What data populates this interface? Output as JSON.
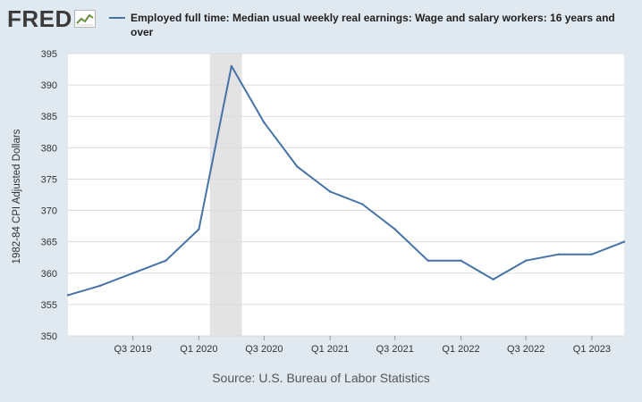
{
  "logo": {
    "text": "FRED"
  },
  "source": "Source: U.S. Bureau of Labor Statistics",
  "colors": {
    "line": "#4572a7",
    "background": "#e1e9f0",
    "plot_bg": "#ffffff",
    "recession": "#e3e3e3",
    "grid": "#dcdcdc"
  },
  "chart_data": {
    "type": "line",
    "series": [
      {
        "name": "Employed full time: Median usual weekly real earnings: Wage and salary workers: 16 years and over",
        "x": [
          "2019-01-01",
          "2019-04-01",
          "2019-07-01",
          "2019-10-01",
          "2020-01-01",
          "2020-04-01",
          "2020-07-01",
          "2020-10-01",
          "2021-01-01",
          "2021-04-01",
          "2021-07-01",
          "2021-10-01",
          "2022-01-01",
          "2022-04-01",
          "2022-07-01",
          "2022-10-01",
          "2023-01-01",
          "2023-04-01"
        ],
        "values": [
          356.5,
          358,
          360,
          362,
          367,
          393,
          384,
          377,
          373,
          371,
          367,
          362,
          362,
          359,
          362,
          363,
          363,
          365
        ]
      }
    ],
    "recession": {
      "start": "2020-02-01",
      "end": "2020-04-30"
    },
    "xlim": [
      "2019-01-01",
      "2023-04-01"
    ],
    "x_ticks": [
      {
        "date": "2019-07-01",
        "label": "Q3 2019"
      },
      {
        "date": "2020-01-01",
        "label": "Q1 2020"
      },
      {
        "date": "2020-07-01",
        "label": "Q3 2020"
      },
      {
        "date": "2021-01-01",
        "label": "Q1 2021"
      },
      {
        "date": "2021-07-01",
        "label": "Q3 2021"
      },
      {
        "date": "2022-01-01",
        "label": "Q1 2022"
      },
      {
        "date": "2022-07-01",
        "label": "Q3 2022"
      },
      {
        "date": "2023-01-01",
        "label": "Q1 2023"
      }
    ],
    "ylim": [
      350,
      395
    ],
    "y_ticks": [
      350,
      355,
      360,
      365,
      370,
      375,
      380,
      385,
      390,
      395
    ],
    "ylabel": "1982-84 CPI Adjusted Dollars",
    "grid": true
  }
}
